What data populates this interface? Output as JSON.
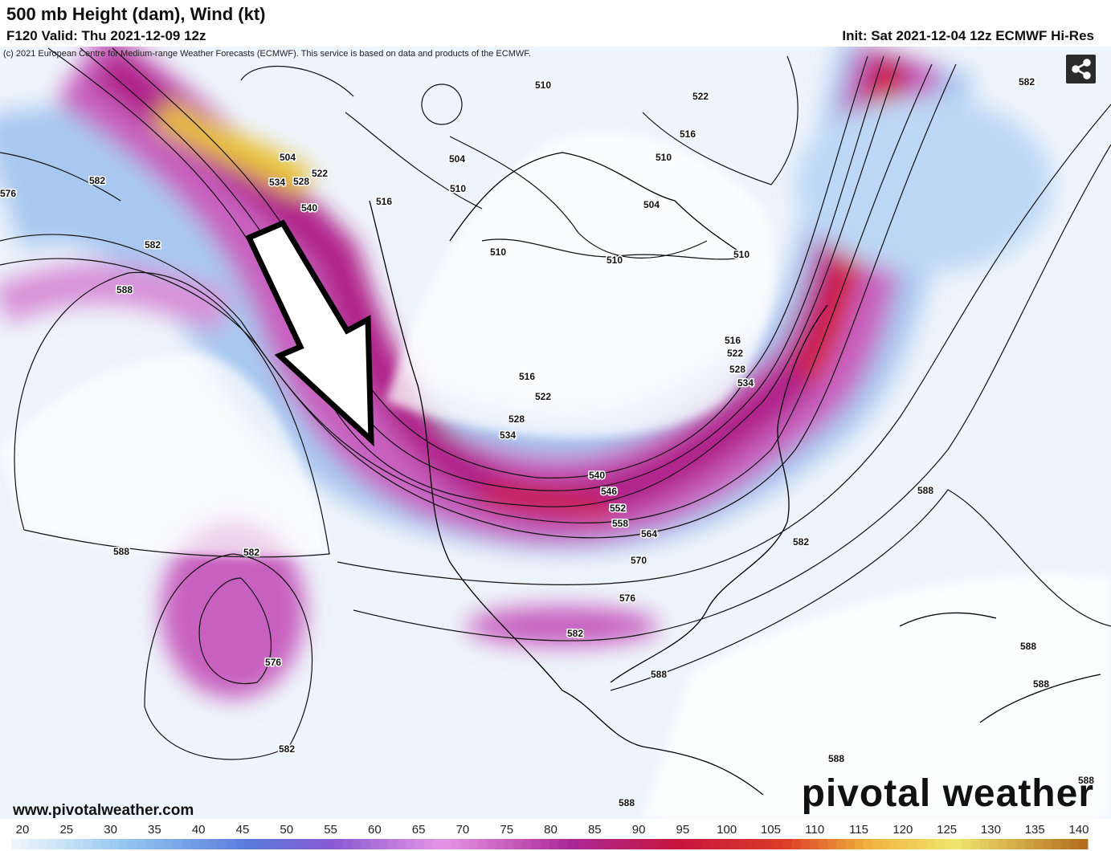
{
  "header": {
    "title": "500 mb Height (dam), Wind (kt)",
    "valid": "F120 Valid: Thu 2021-12-09 12z",
    "init": "Init: Sat 2021-12-04 12z ECMWF Hi-Res",
    "copyright": "(c) 2021 European Centre for Medium-range Weather Forecasts (ECMWF). This service is based on data and products of the ECMWF."
  },
  "contour_labels": [
    504,
    534,
    528,
    522,
    540,
    516,
    510,
    522,
    516,
    510,
    504,
    510,
    504,
    510,
    510,
    510,
    582,
    576,
    582,
    588,
    582,
    516,
    522,
    528,
    534,
    516,
    522,
    528,
    534,
    540,
    546,
    552,
    558,
    564,
    570,
    576,
    582,
    582,
    588,
    588,
    582,
    576,
    582,
    588,
    588,
    588,
    588,
    588,
    588
  ],
  "footer": {
    "website": "www.pivotalweather.com",
    "logo": "pivotal weather"
  },
  "colorbar": {
    "labels": [
      20,
      25,
      30,
      35,
      40,
      45,
      50,
      55,
      60,
      65,
      70,
      75,
      80,
      85,
      90,
      95,
      100,
      105,
      110,
      115,
      120,
      125,
      130,
      135,
      140
    ]
  }
}
